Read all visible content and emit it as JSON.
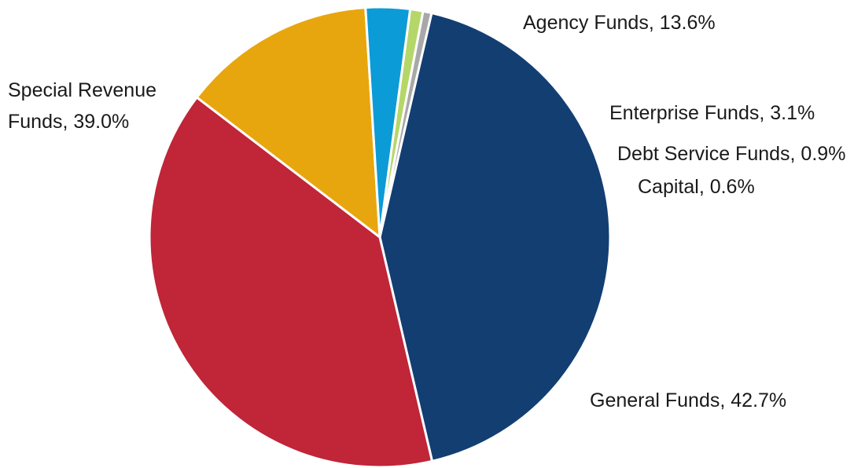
{
  "chart_data": {
    "type": "pie",
    "slices": [
      {
        "name": "General Funds",
        "value": 42.7,
        "label": "General Funds, 42.7%",
        "label_lines": [
          "General Funds, 42.7%"
        ],
        "color": "#123e72"
      },
      {
        "name": "Special Revenue Funds",
        "value": 39.0,
        "label": "Special Revenue Funds, 39.0%",
        "label_lines": [
          "Special Revenue",
          "Funds, 39.0%"
        ],
        "color": "#c02538"
      },
      {
        "name": "Agency Funds",
        "value": 13.6,
        "label": "Agency Funds, 13.6%",
        "label_lines": [
          "Agency Funds, 13.6%"
        ],
        "color": "#e8a60e"
      },
      {
        "name": "Enterprise Funds",
        "value": 3.1,
        "label": "Enterprise Funds, 3.1%",
        "label_lines": [
          "Enterprise Funds, 3.1%"
        ],
        "color": "#0b9bd7"
      },
      {
        "name": "Debt Service Funds",
        "value": 0.9,
        "label": "Debt Service Funds, 0.9%",
        "label_lines": [
          "Debt Service Funds, 0.9%"
        ],
        "color": "#b5d769"
      },
      {
        "name": "Capital",
        "value": 0.6,
        "label": "Capital, 0.6%",
        "label_lines": [
          "Capital, 0.6%"
        ],
        "color": "#a8a8a8"
      }
    ],
    "start_angle_deg": 77,
    "direction": "clockwise",
    "legend": "none"
  }
}
